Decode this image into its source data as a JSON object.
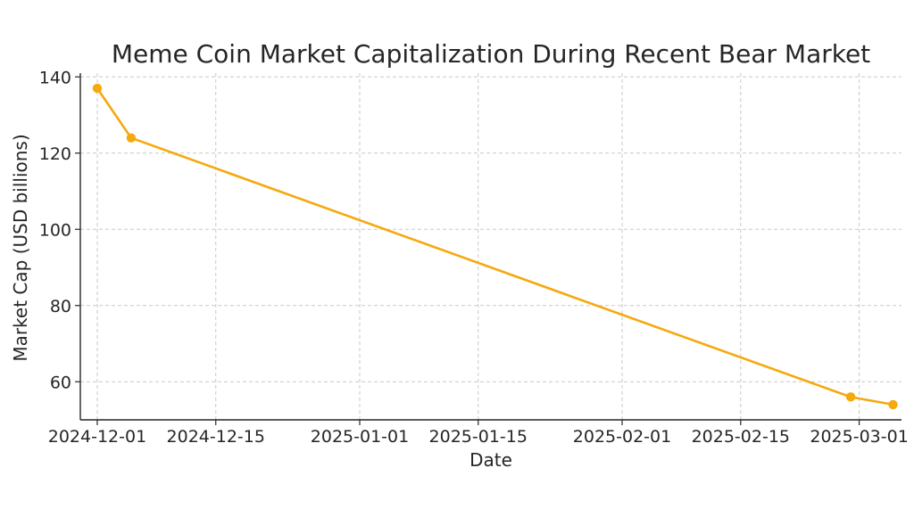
{
  "chart_data": {
    "type": "line",
    "title": "Meme Coin Market Capitalization During Recent Bear Market",
    "xlabel": "Date",
    "ylabel": "Market Cap (USD billions)",
    "x_ticks": [
      "2024-12-01",
      "2024-12-15",
      "2025-01-01",
      "2025-01-15",
      "2025-02-01",
      "2025-02-15",
      "2025-03-01"
    ],
    "y_ticks": [
      60,
      80,
      100,
      120,
      140
    ],
    "xlim": [
      "2024-11-29",
      "2025-03-06"
    ],
    "ylim": [
      50,
      141
    ],
    "grid": true,
    "series": [
      {
        "color": "#F5A90F",
        "points": [
          {
            "x": "2024-12-01",
            "y": 137
          },
          {
            "x": "2024-12-05",
            "y": 124
          },
          {
            "x": "2025-02-28",
            "y": 56
          },
          {
            "x": "2025-03-05",
            "y": 54
          }
        ]
      }
    ]
  }
}
